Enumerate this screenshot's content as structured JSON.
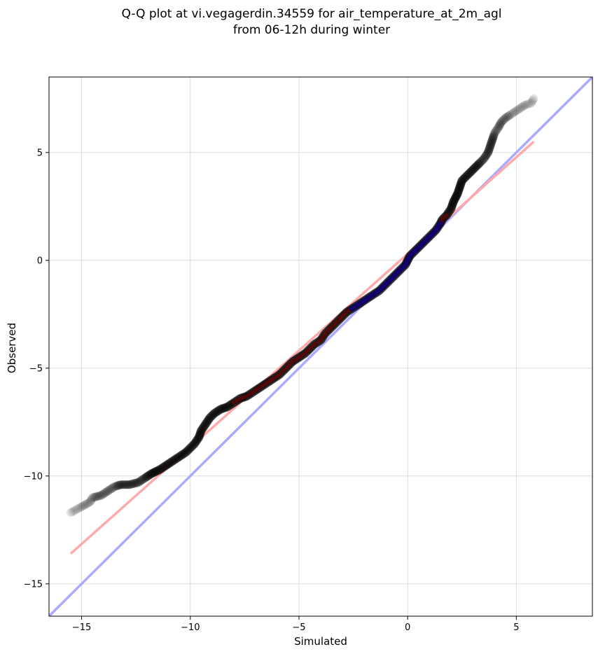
{
  "chart_data": {
    "type": "scatter",
    "title": [
      "Q-Q plot at vi.vegagerdin.34559 for air_temperature_at_2m_agl",
      "from 06-12h during winter"
    ],
    "xlabel": "Simulated",
    "ylabel": "Observed",
    "xlim": [
      -16.5,
      8.5
    ],
    "ylim": [
      -16.5,
      8.5
    ],
    "xticks": [
      -15,
      -10,
      -5,
      0,
      5
    ],
    "yticks": [
      -15,
      -10,
      -5,
      0,
      5
    ],
    "xtick_labels": [
      "−15",
      "−10",
      "−5",
      "0",
      "5"
    ],
    "ytick_labels": [
      "−15",
      "−10",
      "−5",
      "0",
      "5"
    ],
    "grid": true,
    "quantile_points": [
      [
        -15.5,
        -11.7
      ],
      [
        -14.6,
        -11.2
      ],
      [
        -14.5,
        -11.0
      ],
      [
        -14.1,
        -10.9
      ],
      [
        -13.8,
        -10.7
      ],
      [
        -13.5,
        -10.5
      ],
      [
        -13.2,
        -10.4
      ],
      [
        -12.8,
        -10.4
      ],
      [
        -12.4,
        -10.3
      ],
      [
        -12.1,
        -10.1
      ],
      [
        -11.8,
        -9.9
      ],
      [
        -11.4,
        -9.7
      ],
      [
        -11.1,
        -9.5
      ],
      [
        -10.8,
        -9.3
      ],
      [
        -10.5,
        -9.1
      ],
      [
        -10.2,
        -8.9
      ],
      [
        -10.0,
        -8.7
      ],
      [
        -9.8,
        -8.5
      ],
      [
        -9.6,
        -8.2
      ],
      [
        -9.5,
        -7.9
      ],
      [
        -9.3,
        -7.6
      ],
      [
        -9.1,
        -7.3
      ],
      [
        -8.9,
        -7.1
      ],
      [
        -8.6,
        -6.9
      ],
      [
        -8.3,
        -6.8
      ],
      [
        -8.0,
        -6.6
      ],
      [
        -7.7,
        -6.4
      ],
      [
        -7.4,
        -6.3
      ],
      [
        -7.1,
        -6.1
      ],
      [
        -6.8,
        -5.9
      ],
      [
        -6.5,
        -5.7
      ],
      [
        -6.2,
        -5.5
      ],
      [
        -5.9,
        -5.3
      ],
      [
        -5.7,
        -5.1
      ],
      [
        -5.5,
        -4.9
      ],
      [
        -5.3,
        -4.7
      ],
      [
        -5.0,
        -4.5
      ],
      [
        -4.7,
        -4.3
      ],
      [
        -4.5,
        -4.1
      ],
      [
        -4.3,
        -3.9
      ],
      [
        -4.0,
        -3.7
      ],
      [
        -3.8,
        -3.4
      ],
      [
        -3.6,
        -3.2
      ],
      [
        -3.4,
        -3.0
      ],
      [
        -3.2,
        -2.8
      ],
      [
        -3.0,
        -2.6
      ],
      [
        -2.8,
        -2.4
      ],
      [
        -2.5,
        -2.2
      ],
      [
        -2.2,
        -2.0
      ],
      [
        -1.9,
        -1.8
      ],
      [
        -1.6,
        -1.6
      ],
      [
        -1.3,
        -1.4
      ],
      [
        -1.1,
        -1.2
      ],
      [
        -0.9,
        -1.0
      ],
      [
        -0.7,
        -0.8
      ],
      [
        -0.5,
        -0.6
      ],
      [
        -0.3,
        -0.4
      ],
      [
        -0.1,
        -0.2
      ],
      [
        0.0,
        0.0
      ],
      [
        0.1,
        0.2
      ],
      [
        0.3,
        0.4
      ],
      [
        0.5,
        0.6
      ],
      [
        0.7,
        0.8
      ],
      [
        0.9,
        1.0
      ],
      [
        1.1,
        1.2
      ],
      [
        1.3,
        1.4
      ],
      [
        1.5,
        1.7
      ],
      [
        1.6,
        1.9
      ],
      [
        1.8,
        2.1
      ],
      [
        2.0,
        2.4
      ],
      [
        2.1,
        2.7
      ],
      [
        2.3,
        3.1
      ],
      [
        2.4,
        3.4
      ],
      [
        2.5,
        3.7
      ],
      [
        2.7,
        3.9
      ],
      [
        2.9,
        4.1
      ],
      [
        3.1,
        4.3
      ],
      [
        3.3,
        4.5
      ],
      [
        3.5,
        4.7
      ],
      [
        3.7,
        5.0
      ],
      [
        3.8,
        5.3
      ],
      [
        3.9,
        5.6
      ],
      [
        4.0,
        5.9
      ],
      [
        4.2,
        6.2
      ],
      [
        4.3,
        6.4
      ],
      [
        4.5,
        6.6
      ],
      [
        4.8,
        6.8
      ],
      [
        5.1,
        7.0
      ],
      [
        5.4,
        7.2
      ],
      [
        5.7,
        7.3
      ],
      [
        5.8,
        7.5
      ]
    ],
    "reference_line": {
      "color": "#aaaaff",
      "from": [
        -16.5,
        -16.5
      ],
      "to": [
        8.5,
        8.5
      ]
    },
    "fit_line": {
      "color": "#ffaaaa",
      "from": [
        -15.5,
        -13.6
      ],
      "to": [
        5.8,
        5.5
      ]
    },
    "colors": {
      "points": "#000000",
      "overlay_mid": "#8b0000",
      "overlay_core": "#00008b",
      "grid": "#dddddd"
    }
  }
}
